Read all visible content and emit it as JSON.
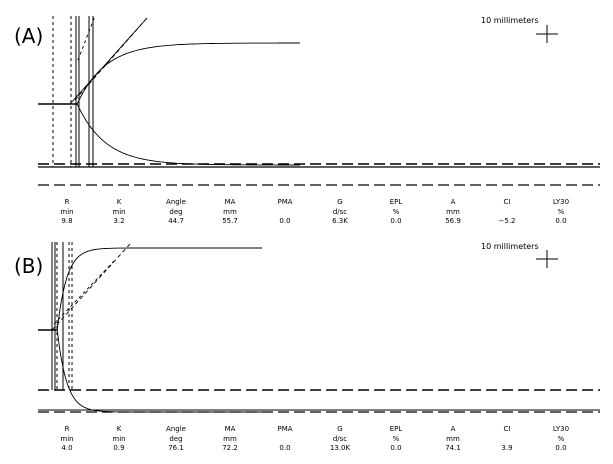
{
  "scale_bar_label": "10 millimeters",
  "param_columns": [
    {
      "name": "R",
      "unit": "min"
    },
    {
      "name": "K",
      "unit": "min"
    },
    {
      "name": "Angle",
      "unit": "deg"
    },
    {
      "name": "MA",
      "unit": "mm"
    },
    {
      "name": "PMA",
      "unit": ""
    },
    {
      "name": "G",
      "unit": "d/sc"
    },
    {
      "name": "EPL",
      "unit": "%"
    },
    {
      "name": "A",
      "unit": "mm"
    },
    {
      "name": "CI",
      "unit": ""
    },
    {
      "name": "LY30",
      "unit": "%"
    }
  ],
  "panels": [
    {
      "label": "(A)",
      "values": [
        "9.8",
        "3.2",
        "44.7",
        "55.7",
        "0.0",
        "6.3K",
        "0.0",
        "56.9",
        "−5.2",
        "0.0"
      ]
    },
    {
      "label": "(B)",
      "values": [
        "4.0",
        "0.9",
        "76.1",
        "72.2",
        "0.0",
        "13.0K",
        "0.0",
        "74.1",
        "3.9",
        "0.0"
      ]
    }
  ],
  "chart_data": [
    {
      "type": "line",
      "panel": "(A)",
      "title": "",
      "xlabel": "",
      "ylabel": "",
      "grid": false,
      "parameters": {
        "R": 9.8,
        "K": 3.2,
        "Angle": 44.7,
        "MA": 55.7,
        "PMA": 0.0,
        "G": "6.3K",
        "EPL": 0.0,
        "A": 56.9,
        "CI": -5.2,
        "LY30": 0.0
      },
      "shape": {
        "R": 9.8,
        "K": 3.2,
        "MA": 55.7,
        "extent": 39
      }
    },
    {
      "type": "line",
      "panel": "(B)",
      "title": "",
      "xlabel": "",
      "ylabel": "",
      "grid": false,
      "parameters": {
        "R": 4.0,
        "K": 0.9,
        "Angle": 76.1,
        "MA": 72.2,
        "PMA": 0.0,
        "G": "13.0K",
        "EPL": 0.0,
        "A": 74.1,
        "CI": 3.9,
        "LY30": 0.0
      },
      "shape": {
        "R": 4.0,
        "K": 0.9,
        "MA": 72.2,
        "extent": 37
      }
    }
  ]
}
